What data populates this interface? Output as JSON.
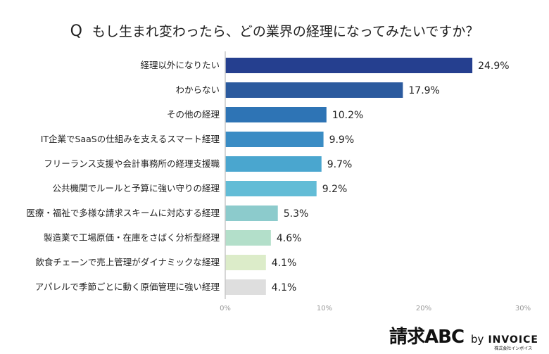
{
  "chart_data": {
    "type": "bar",
    "orientation": "horizontal",
    "title_prefix": "Q",
    "title": "もし生まれ変わったら、どの業界の経理になってみたいですか？",
    "categories": [
      "経理以外になりたい",
      "わからない",
      "その他の経理",
      "IT企業でSaaSの仕組みを支えるスマート経理",
      "フリーランス支援や会計事務所の経理支援職",
      "公共機関でルールと予算に強い守りの経理",
      "医療・福祉で多様な請求スキームに対応する経理",
      "製造業で工場原価・在庫をさばく分析型経理",
      "飲食チェーンで売上管理がダイナミックな経理",
      "アパレルで季節ごとに動く原価管理に強い経理"
    ],
    "values": [
      24.9,
      17.9,
      10.2,
      9.9,
      9.7,
      9.2,
      5.3,
      4.6,
      4.1,
      4.1
    ],
    "data_labels": [
      "24.9%",
      "17.9%",
      "10.2%",
      "9.9%",
      "9.7%",
      "9.2%",
      "5.3%",
      "4.6%",
      "4.1%",
      "4.1%"
    ],
    "colors": [
      "#253f8f",
      "#2b5a9e",
      "#2e74b5",
      "#3a8cc4",
      "#4aa6cf",
      "#62bcd6",
      "#8ccbcc",
      "#b3dfca",
      "#dcecc9",
      "#dedede"
    ],
    "xlim": [
      0,
      30
    ],
    "xticks": [
      0,
      10,
      20,
      30
    ],
    "xtick_labels": [
      "0%",
      "10%",
      "20%",
      "30%"
    ],
    "grid": false,
    "legend": "none"
  },
  "logo": {
    "main": "請求ABC",
    "by": "by",
    "brand": "INVOICE",
    "brand_sub": "株式会社インボイス"
  }
}
